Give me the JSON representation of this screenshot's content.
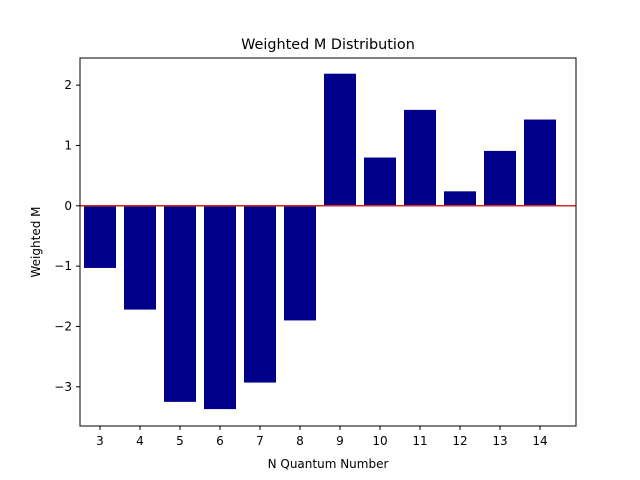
{
  "chart_data": {
    "type": "bar",
    "title": "Weighted M Distribution",
    "xlabel": "N Quantum Number",
    "ylabel": "Weighted M",
    "categories": [
      "3",
      "4",
      "5",
      "6",
      "7",
      "8",
      "9",
      "10",
      "11",
      "12",
      "13",
      "14"
    ],
    "x": [
      3,
      4,
      5,
      6,
      7,
      8,
      9,
      10,
      11,
      12,
      13,
      14
    ],
    "values": [
      -1.03,
      -1.72,
      -3.25,
      -3.37,
      -2.93,
      -1.9,
      2.19,
      0.8,
      1.59,
      0.24,
      0.91,
      1.43
    ],
    "xlim": [
      2.5,
      14.9
    ],
    "ylim": [
      -3.65,
      2.45
    ],
    "y_ticks": [
      -3,
      -2,
      -1,
      0,
      1,
      2
    ],
    "y_tick_labels": [
      "−3",
      "−2",
      "−1",
      "0",
      "1",
      "2"
    ],
    "reference_line": {
      "y": 0,
      "color": "#d62728"
    },
    "bar_color": "#00008b",
    "grid": false,
    "legend": "none"
  }
}
